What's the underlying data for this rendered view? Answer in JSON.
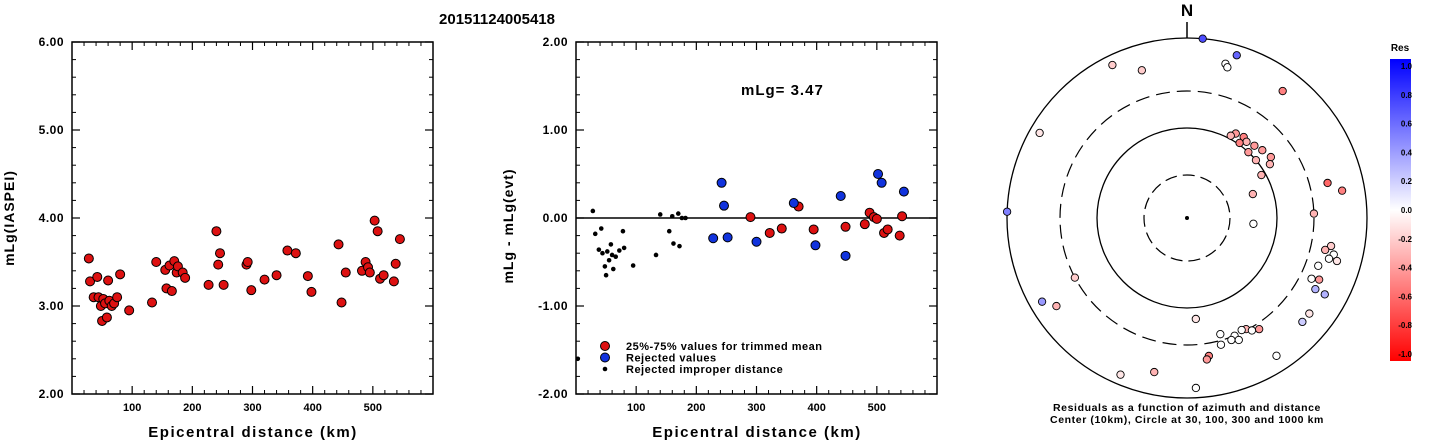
{
  "figure_title": "20151124005418",
  "chart_data": [
    {
      "type": "scatter",
      "name": "magnitude-vs-distance",
      "xlabel": "Epicentral distance (km)",
      "ylabel": "mLg(IASPEI)",
      "xlim": [
        0,
        600
      ],
      "ylim": [
        2.0,
        6.0
      ],
      "x_ticks": [
        "100",
        "200",
        "300",
        "400",
        "500"
      ],
      "y_ticks": [
        "2.00",
        "3.00",
        "4.00",
        "5.00",
        "6.00"
      ],
      "grid": false,
      "points": [
        [
          28,
          3.54
        ],
        [
          30,
          3.28
        ],
        [
          36,
          3.1
        ],
        [
          42,
          3.33
        ],
        [
          44,
          3.1
        ],
        [
          48,
          3.0
        ],
        [
          50,
          2.83
        ],
        [
          52,
          3.08
        ],
        [
          55,
          3.03
        ],
        [
          58,
          2.87
        ],
        [
          60,
          3.29
        ],
        [
          62,
          3.06
        ],
        [
          66,
          3.0
        ],
        [
          70,
          3.03
        ],
        [
          75,
          3.1
        ],
        [
          80,
          3.36
        ],
        [
          95,
          2.95
        ],
        [
          133,
          3.04
        ],
        [
          140,
          3.5
        ],
        [
          155,
          3.41
        ],
        [
          157,
          3.2
        ],
        [
          162,
          3.46
        ],
        [
          166,
          3.17
        ],
        [
          170,
          3.51
        ],
        [
          174,
          3.38
        ],
        [
          176,
          3.45
        ],
        [
          184,
          3.38
        ],
        [
          188,
          3.32
        ],
        [
          227,
          3.24
        ],
        [
          240,
          3.85
        ],
        [
          243,
          3.47
        ],
        [
          246,
          3.6
        ],
        [
          252,
          3.24
        ],
        [
          290,
          3.47
        ],
        [
          292,
          3.5
        ],
        [
          298,
          3.18
        ],
        [
          320,
          3.3
        ],
        [
          340,
          3.35
        ],
        [
          358,
          3.63
        ],
        [
          372,
          3.6
        ],
        [
          392,
          3.34
        ],
        [
          398,
          3.16
        ],
        [
          443,
          3.7
        ],
        [
          448,
          3.04
        ],
        [
          455,
          3.38
        ],
        [
          482,
          3.4
        ],
        [
          488,
          3.5
        ],
        [
          492,
          3.44
        ],
        [
          495,
          3.38
        ],
        [
          503,
          3.97
        ],
        [
          508,
          3.85
        ],
        [
          512,
          3.31
        ],
        [
          518,
          3.35
        ],
        [
          535,
          3.28
        ],
        [
          538,
          3.48
        ],
        [
          545,
          3.76
        ]
      ]
    },
    {
      "type": "scatter",
      "name": "residual-vs-distance",
      "xlabel": "Epicentral distance (km)",
      "ylabel": "mLg - mLg(evt)",
      "annotation": "mLg= 3.47",
      "xlim": [
        0,
        600
      ],
      "ylim": [
        -2.0,
        2.0
      ],
      "x_ticks": [
        "100",
        "200",
        "300",
        "400",
        "500"
      ],
      "y_ticks": [
        "-2.00",
        "-1.00",
        "0.00",
        "1.00",
        "2.00"
      ],
      "reference_line_y": 0.0,
      "legend": {
        "position": "bottom-left",
        "entries": [
          {
            "label": "25%-75% values for trimmed mean",
            "color": "#dd1111",
            "marker": "circle"
          },
          {
            "label": "Rejected values",
            "color": "#1133dd",
            "marker": "circle"
          },
          {
            "label": "Rejected improper distance",
            "color": "#000000",
            "marker": "dot"
          }
        ]
      },
      "series": [
        {
          "name": "25%-75% values for trimmed mean",
          "points": [
            [
              290,
              0.01
            ],
            [
              322,
              -0.17
            ],
            [
              342,
              -0.12
            ],
            [
              370,
              0.13
            ],
            [
              395,
              -0.13
            ],
            [
              448,
              -0.1
            ],
            [
              480,
              -0.07
            ],
            [
              488,
              0.06
            ],
            [
              495,
              0.01
            ],
            [
              500,
              -0.01
            ],
            [
              512,
              -0.17
            ],
            [
              518,
              -0.13
            ],
            [
              538,
              -0.2
            ],
            [
              542,
              0.02
            ]
          ]
        },
        {
          "name": "Rejected values",
          "points": [
            [
              228,
              -0.23
            ],
            [
              242,
              0.4
            ],
            [
              246,
              0.14
            ],
            [
              252,
              -0.22
            ],
            [
              300,
              -0.27
            ],
            [
              362,
              0.17
            ],
            [
              398,
              -0.31
            ],
            [
              440,
              0.25
            ],
            [
              448,
              -0.43
            ],
            [
              502,
              0.5
            ],
            [
              508,
              0.4
            ],
            [
              545,
              0.3
            ]
          ]
        },
        {
          "name": "Rejected improper distance",
          "points": [
            [
              3,
              -1.6
            ],
            [
              28,
              0.08
            ],
            [
              32,
              -0.18
            ],
            [
              38,
              -0.36
            ],
            [
              42,
              -0.12
            ],
            [
              44,
              -0.4
            ],
            [
              48,
              -0.55
            ],
            [
              50,
              -0.65
            ],
            [
              52,
              -0.38
            ],
            [
              55,
              -0.48
            ],
            [
              58,
              -0.3
            ],
            [
              60,
              -0.42
            ],
            [
              62,
              -0.58
            ],
            [
              66,
              -0.44
            ],
            [
              72,
              -0.37
            ],
            [
              78,
              -0.15
            ],
            [
              80,
              -0.34
            ],
            [
              95,
              -0.54
            ],
            [
              133,
              -0.42
            ],
            [
              140,
              0.04
            ],
            [
              155,
              -0.15
            ],
            [
              160,
              0.02
            ],
            [
              162,
              -0.29
            ],
            [
              170,
              0.05
            ],
            [
              172,
              -0.32
            ],
            [
              176,
              0.0
            ],
            [
              182,
              0.0
            ]
          ]
        }
      ]
    },
    {
      "type": "polar-scatter",
      "name": "azimuth-residuals",
      "north_label": "N",
      "caption_line1": "Residuals as a function of azimuth and distance",
      "caption_line2": "Center (10km), Circle at 30, 100, 300 and 1000 km",
      "rings_km": [
        30,
        100,
        300,
        1000
      ],
      "center_km": 10,
      "colorbar": {
        "title": "Res",
        "ticks": [
          "1.0",
          "0.8",
          "0.6",
          "0.4",
          "0.2",
          "0.0",
          "-0.2",
          "-0.4",
          "-0.6",
          "-0.8",
          "-1.0"
        ],
        "range": [
          -1.0,
          1.0
        ],
        "min_color": "#ff0000",
        "mid_color": "#ffffff",
        "max_color": "#0000ff"
      },
      "points": [
        {
          "az": 5,
          "dist": 1000,
          "res": 0.7
        },
        {
          "az": 17,
          "dist": 800,
          "res": 0.6
        },
        {
          "az": 14,
          "dist": 620,
          "res": 0.0
        },
        {
          "az": 15,
          "dist": 580,
          "res": 0.0
        },
        {
          "az": 334,
          "dist": 800,
          "res": -0.2
        },
        {
          "az": 343,
          "dist": 560,
          "res": -0.2
        },
        {
          "az": 300,
          "dist": 800,
          "res": -0.1
        },
        {
          "az": 37,
          "dist": 620,
          "res": -0.5
        },
        {
          "az": 35,
          "dist": 130,
          "res": -0.5
        },
        {
          "az": 30,
          "dist": 125,
          "res": -0.4
        },
        {
          "az": 43,
          "dist": 130,
          "res": -0.4
        },
        {
          "az": 38,
          "dist": 122,
          "res": -0.3
        },
        {
          "az": 54,
          "dist": 150,
          "res": -0.4
        },
        {
          "az": 48,
          "dist": 140,
          "res": -0.4
        },
        {
          "az": 57,
          "dist": 130,
          "res": -0.3
        },
        {
          "az": 43,
          "dist": 100,
          "res": -0.4
        },
        {
          "az": 35,
          "dist": 105,
          "res": -0.5
        },
        {
          "az": 28,
          "dist": 110,
          "res": -0.3
        },
        {
          "az": 50,
          "dist": 100,
          "res": -0.3
        },
        {
          "az": 60,
          "dist": 90,
          "res": -0.3
        },
        {
          "az": 70,
          "dist": 60,
          "res": -0.3
        },
        {
          "az": 95,
          "dist": 55,
          "res": 0.0
        },
        {
          "az": 76,
          "dist": 450,
          "res": -0.6
        },
        {
          "az": 80,
          "dist": 600,
          "res": -0.5
        },
        {
          "az": 88,
          "dist": 300,
          "res": -0.3
        },
        {
          "az": 101,
          "dist": 470,
          "res": -0.2
        },
        {
          "az": 103,
          "dist": 420,
          "res": -0.3
        },
        {
          "az": 104,
          "dist": 520,
          "res": 0.0
        },
        {
          "az": 106,
          "dist": 580,
          "res": -0.1
        },
        {
          "az": 106,
          "dist": 480,
          "res": 0.0
        },
        {
          "az": 110,
          "dist": 400,
          "res": 0.0
        },
        {
          "az": 115,
          "dist": 460,
          "res": -0.4
        },
        {
          "az": 116,
          "dist": 390,
          "res": 0.0
        },
        {
          "az": 119,
          "dist": 470,
          "res": 0.3
        },
        {
          "az": 119,
          "dist": 600,
          "res": 0.3
        },
        {
          "az": 128,
          "dist": 570,
          "res": -0.1
        },
        {
          "az": 132,
          "dist": 570,
          "res": 0.2
        },
        {
          "az": 147,
          "dist": 340,
          "res": -0.4
        },
        {
          "az": 152,
          "dist": 290,
          "res": -0.3
        },
        {
          "az": 150,
          "dist": 320,
          "res": 0.0
        },
        {
          "az": 154,
          "dist": 280,
          "res": 0.0
        },
        {
          "az": 158,
          "dist": 300,
          "res": 0.0
        },
        {
          "az": 160,
          "dist": 320,
          "res": 0.0
        },
        {
          "az": 157,
          "dist": 340,
          "res": 0.0
        },
        {
          "az": 164,
          "dist": 250,
          "res": 0.0
        },
        {
          "az": 165,
          "dist": 330,
          "res": 0.0
        },
        {
          "az": 175,
          "dist": 140,
          "res": -0.1
        },
        {
          "az": 147,
          "dist": 700,
          "res": 0.0
        },
        {
          "az": 171,
          "dist": 400,
          "res": -0.5
        },
        {
          "az": 172,
          "dist": 430,
          "res": -0.4
        },
        {
          "az": 177,
          "dist": 800,
          "res": 0.0
        },
        {
          "az": 192,
          "dist": 600,
          "res": -0.3
        },
        {
          "az": 203,
          "dist": 800,
          "res": -0.1
        },
        {
          "az": 240,
          "dist": 750,
          "res": 0.4
        },
        {
          "az": 236,
          "dist": 600,
          "res": -0.3
        },
        {
          "az": 242,
          "dist": 300,
          "res": -0.2
        },
        {
          "az": 272,
          "dist": 1000,
          "res": 0.5
        }
      ]
    }
  ]
}
